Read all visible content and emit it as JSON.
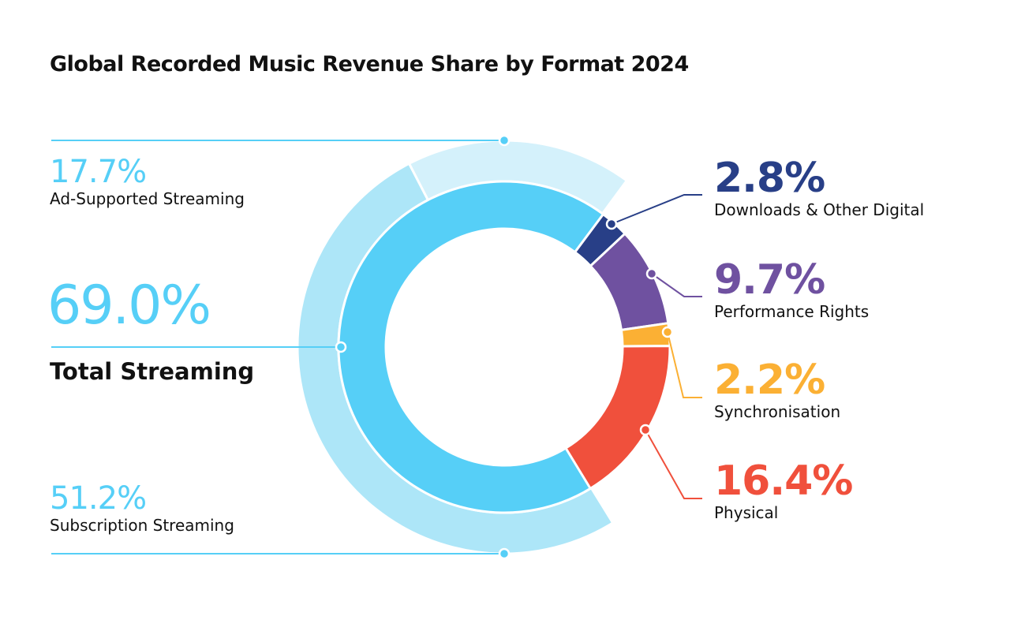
{
  "chart_data": {
    "type": "pie",
    "title": "Global Recorded Music Revenue Share by Format 2024",
    "inner_ring": [
      {
        "name": "Total Streaming",
        "value": 69.0,
        "label": "69.0%",
        "color": "#56cff7"
      },
      {
        "name": "Downloads & Other Digital",
        "value": 2.8,
        "label": "2.8%",
        "color": "#283f87"
      },
      {
        "name": "Performance Rights",
        "value": 9.7,
        "label": "9.7%",
        "color": "#6f51a0"
      },
      {
        "name": "Synchronisation",
        "value": 2.2,
        "label": "2.2%",
        "color": "#fbb034"
      },
      {
        "name": "Physical",
        "value": 16.4,
        "label": "16.4%",
        "color": "#f0503c"
      }
    ],
    "outer_ring": [
      {
        "name": "Subscription Streaming",
        "value": 51.2,
        "label": "51.2%",
        "color": "#ade6f8"
      },
      {
        "name": "Ad-Supported Streaming",
        "value": 17.7,
        "label": "17.7%",
        "color": "#d4f1fb"
      }
    ],
    "label_accent": "#56cff7"
  }
}
